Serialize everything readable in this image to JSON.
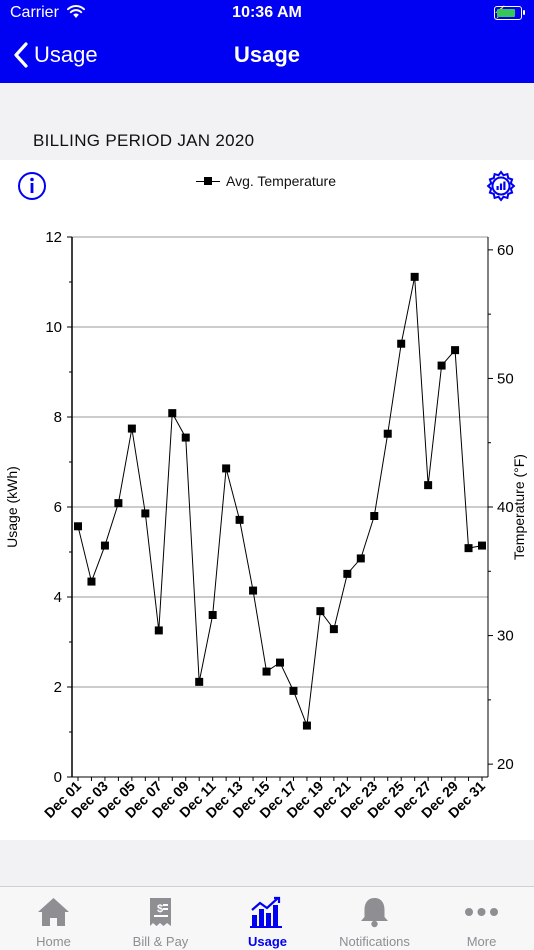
{
  "status": {
    "carrier": "Carrier",
    "time": "10:36 AM"
  },
  "nav": {
    "back_label": "Usage",
    "title": "Usage"
  },
  "billing_period": "BILLING PERIOD JAN 2020",
  "legend_label": "Avg. Temperature",
  "colors": {
    "accent": "#0000f2",
    "battery": "#35c759",
    "inactive": "#8e8e93"
  },
  "chart_data": {
    "type": "line",
    "ylabel": "Usage (kWh)",
    "y2label": "Temperature (°F)",
    "ylim": [
      0,
      12
    ],
    "y2lim": [
      19,
      61
    ],
    "yticks": [
      "0",
      "2",
      "4",
      "6",
      "8",
      "10",
      "12"
    ],
    "y2ticks": [
      "20",
      "30",
      "40",
      "50",
      "60"
    ],
    "grid": true,
    "legend_position": "top",
    "xtick_labels": [
      "Dec 01",
      "Dec 03",
      "Dec 05",
      "Dec 07",
      "Dec 09",
      "Dec 11",
      "Dec 13",
      "Dec 15",
      "Dec 17",
      "Dec 19",
      "Dec 21",
      "Dec 23",
      "Dec 25",
      "Dec 27",
      "Dec 29",
      "Dec 31"
    ],
    "series": [
      {
        "name": "Avg. Temperature",
        "axis": "right",
        "x": [
          "Dec 01",
          "Dec 02",
          "Dec 03",
          "Dec 04",
          "Dec 05",
          "Dec 06",
          "Dec 07",
          "Dec 08",
          "Dec 09",
          "Dec 10",
          "Dec 11",
          "Dec 12",
          "Dec 13",
          "Dec 14",
          "Dec 15",
          "Dec 16",
          "Dec 17",
          "Dec 18",
          "Dec 19",
          "Dec 20",
          "Dec 21",
          "Dec 22",
          "Dec 23",
          "Dec 24",
          "Dec 25",
          "Dec 26",
          "Dec 27",
          "Dec 28",
          "Dec 29",
          "Dec 30",
          "Dec 31"
        ],
        "values": [
          38.5,
          34.2,
          37.0,
          40.3,
          46.1,
          39.5,
          30.4,
          47.3,
          45.4,
          26.4,
          31.6,
          43.0,
          39.0,
          33.5,
          27.2,
          27.9,
          25.7,
          23.0,
          31.9,
          30.5,
          34.8,
          36.0,
          39.3,
          45.7,
          52.7,
          57.9,
          41.7,
          51.0,
          52.2,
          36.8,
          37.0
        ]
      }
    ]
  },
  "tabs": [
    {
      "label": "Home",
      "icon": "house-icon"
    },
    {
      "label": "Bill & Pay",
      "icon": "bill-icon"
    },
    {
      "label": "Usage",
      "icon": "bar-chart-icon"
    },
    {
      "label": "Notifications",
      "icon": "bell-icon"
    },
    {
      "label": "More",
      "icon": "ellipsis-icon"
    }
  ]
}
